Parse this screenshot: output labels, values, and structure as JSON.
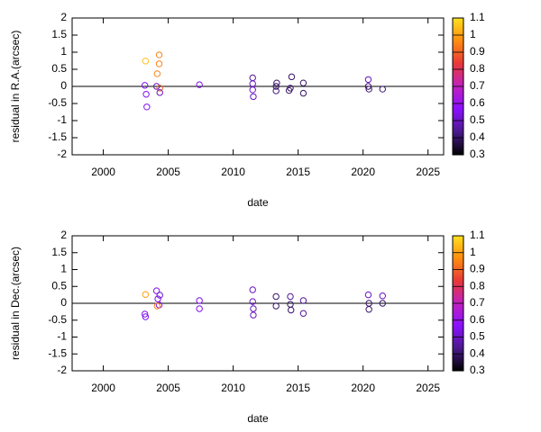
{
  "chart_data": [
    {
      "type": "scatter",
      "xlabel": "date",
      "ylabel": "residual in R.A.(arcsec)",
      "xlim": [
        1997.6,
        2026.2
      ],
      "xticks": [
        2000,
        2005,
        2010,
        2015,
        2020,
        2025
      ],
      "ylim": [
        -2,
        2
      ],
      "yticks": [
        -2,
        -1.5,
        -1,
        -0.5,
        0,
        0.5,
        1,
        1.5,
        2
      ],
      "hline": 0,
      "zlim": [
        0.3,
        1.1
      ],
      "zticks": [
        0.3,
        0.4,
        0.5,
        0.6,
        0.7,
        0.8,
        0.9,
        1,
        1.1
      ],
      "palette": [
        "#000000",
        "#4a1a8a",
        "#8a10ff",
        "#c020c0",
        "#e83838",
        "#ff8c10",
        "#ffe020"
      ],
      "x": [
        2003.25,
        2003.2,
        2003.3,
        2003.35,
        2004.1,
        2004.3,
        2004.3,
        2004.15,
        2004.35,
        2004.35,
        2007.4,
        2011.5,
        2011.5,
        2011.5,
        2011.55,
        2013.3,
        2013.3,
        2013.35,
        2014.4,
        2014.5,
        2014.3,
        2015.4,
        2015.4,
        2020.4,
        2020.4,
        2020.45,
        2021.5
      ],
      "y": [
        0.74,
        0.03,
        -0.23,
        -0.6,
        0.0,
        0.92,
        0.66,
        0.37,
        -0.05,
        -0.18,
        0.05,
        0.25,
        0.08,
        -0.1,
        -0.3,
        0.0,
        -0.13,
        0.1,
        -0.05,
        0.28,
        -0.12,
        0.1,
        -0.2,
        0.2,
        0.0,
        -0.08,
        -0.08
      ],
      "colors": [
        1.05,
        0.55,
        0.55,
        0.55,
        0.5,
        0.95,
        0.95,
        0.95,
        0.9,
        0.5,
        0.55,
        0.45,
        0.5,
        0.5,
        0.5,
        0.4,
        0.4,
        0.4,
        0.4,
        0.4,
        0.4,
        0.4,
        0.4,
        0.5,
        0.4,
        0.4,
        0.4
      ]
    },
    {
      "type": "scatter",
      "xlabel": "date",
      "ylabel": "residual in Dec.(arcsec)",
      "xlim": [
        1997.6,
        2026.2
      ],
      "xticks": [
        2000,
        2005,
        2010,
        2015,
        2020,
        2025
      ],
      "ylim": [
        -2,
        2
      ],
      "yticks": [
        -2,
        -1.5,
        -1,
        -0.5,
        0,
        0.5,
        1,
        1.5,
        2
      ],
      "hline": 0,
      "zlim": [
        0.3,
        1.1
      ],
      "zticks": [
        0.3,
        0.4,
        0.5,
        0.6,
        0.7,
        0.8,
        0.9,
        1,
        1.1
      ],
      "palette": [
        "#000000",
        "#4a1a8a",
        "#8a10ff",
        "#c020c0",
        "#e83838",
        "#ff8c10",
        "#ffe020"
      ],
      "x": [
        2003.25,
        2003.2,
        2003.25,
        2004.1,
        2004.2,
        2004.3,
        2004.15,
        2004.35,
        2007.4,
        2007.4,
        2011.5,
        2011.5,
        2011.55,
        2011.55,
        2013.3,
        2013.3,
        2014.4,
        2014.4,
        2014.45,
        2015.4,
        2015.4,
        2020.4,
        2020.45,
        2020.45,
        2021.5,
        2021.5
      ],
      "y": [
        0.26,
        -0.32,
        -0.4,
        0.37,
        0.13,
        -0.05,
        -0.08,
        0.24,
        0.08,
        -0.16,
        0.4,
        0.05,
        -0.16,
        -0.35,
        0.2,
        -0.08,
        0.2,
        -0.03,
        -0.2,
        0.08,
        -0.3,
        0.25,
        0.0,
        -0.18,
        0.22,
        0.0
      ],
      "colors": [
        1.0,
        0.55,
        0.55,
        0.55,
        0.55,
        0.55,
        0.95,
        0.5,
        0.55,
        0.55,
        0.5,
        0.5,
        0.5,
        0.5,
        0.4,
        0.4,
        0.45,
        0.4,
        0.4,
        0.45,
        0.45,
        0.5,
        0.4,
        0.4,
        0.5,
        0.4
      ]
    }
  ]
}
